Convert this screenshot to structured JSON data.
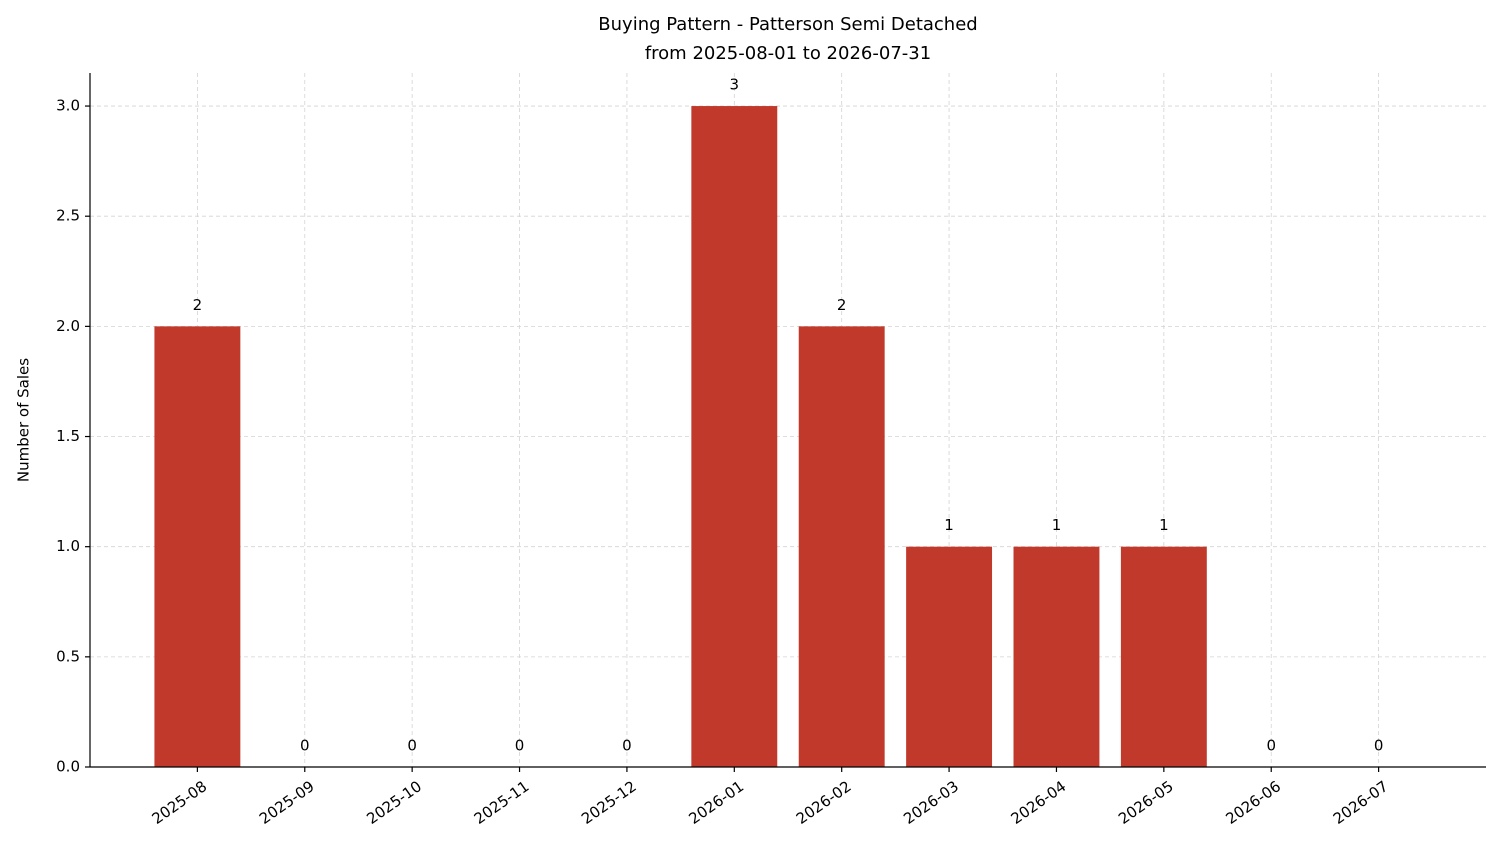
{
  "chart_data": {
    "type": "bar",
    "title": "Buying Pattern - Patterson Semi Detached",
    "subtitle": "from 2025-08-01 to 2026-07-31",
    "y_label": "Number of Sales",
    "categories": [
      "2025-08",
      "2025-09",
      "2025-10",
      "2025-11",
      "2025-12",
      "2026-01",
      "2026-02",
      "2026-03",
      "2026-04",
      "2026-05",
      "2026-06",
      "2026-07"
    ],
    "values": [
      2,
      0,
      0,
      0,
      0,
      3,
      2,
      1,
      1,
      1,
      0,
      0
    ],
    "color": "#c0392b",
    "ylim": [
      0,
      3.15
    ],
    "yticks": [
      {
        "value": 0,
        "label": "0.0"
      },
      0.5,
      {
        "value": 1,
        "label": "1.0"
      },
      1.5,
      {
        "value": 2,
        "label": "2.0"
      },
      2.5,
      {
        "value": 3,
        "label": "3.0"
      }
    ],
    "grid": true
  }
}
